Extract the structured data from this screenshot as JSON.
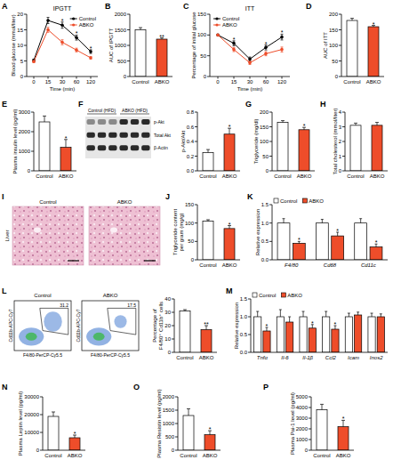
{
  "chart_data": [
    {
      "panel": "A",
      "type": "line",
      "title": "IPGTT",
      "categories": [
        "0",
        "15",
        "30",
        "60",
        "120"
      ],
      "series": [
        {
          "name": "Control",
          "color": "#000000",
          "values": [
            5.2,
            18,
            16.5,
            12.5,
            8
          ],
          "errors": [
            0.4,
            1,
            1,
            0.8,
            0.6
          ]
        },
        {
          "name": "ABKO",
          "color": "#ee4d2a",
          "values": [
            4.8,
            15,
            11,
            8.5,
            6
          ],
          "errors": [
            0.3,
            0.8,
            0.8,
            0.6,
            0.4
          ]
        }
      ],
      "ylim": [
        0,
        20
      ],
      "yticks": [
        0,
        5,
        10,
        15,
        20
      ],
      "x_label": "Time (min)",
      "y_label": "Blood glucose (mmol/liter)",
      "legend": "upper right",
      "annotations": [
        {
          "category": "30",
          "text": "*"
        },
        {
          "category": "60",
          "text": "*"
        },
        {
          "category": "120",
          "text": "*"
        }
      ]
    },
    {
      "panel": "B",
      "type": "bar",
      "categories": [
        "Control",
        "ABKO"
      ],
      "values": [
        1500,
        1200
      ],
      "errors": [
        70,
        40
      ],
      "colors": [
        "#ffffff",
        "#ee4d2a"
      ],
      "ylim": [
        0,
        2000
      ],
      "yticks": [
        0,
        500,
        1000,
        1500,
        2000
      ],
      "y_label": "AUC of IPGTT",
      "annotations": [
        {
          "category": "ABKO",
          "text": "**"
        }
      ]
    },
    {
      "panel": "C",
      "type": "line",
      "title": "ITT",
      "categories": [
        "0",
        "15",
        "30",
        "60",
        "120"
      ],
      "series": [
        {
          "name": "Control",
          "color": "#000000",
          "values": [
            100,
            80,
            42,
            70,
            95
          ],
          "errors": [
            0,
            6,
            5,
            6,
            7
          ]
        },
        {
          "name": "ABKO",
          "color": "#ee4d2a",
          "values": [
            100,
            65,
            33,
            55,
            65
          ],
          "errors": [
            0,
            5,
            4,
            5,
            6
          ]
        }
      ],
      "ylim": [
        0,
        150
      ],
      "yticks": [
        0,
        50,
        100,
        150
      ],
      "x_label": "Time (min)",
      "y_label": "Percentage of initial glucose",
      "legend": "upper left",
      "annotations": [
        {
          "category": "15",
          "text": "*"
        },
        {
          "category": "60",
          "text": "*"
        },
        {
          "category": "120",
          "text": "*"
        }
      ]
    },
    {
      "panel": "D",
      "type": "bar",
      "categories": [
        "Control",
        "ABKO"
      ],
      "values": [
        180,
        160
      ],
      "errors": [
        7,
        4
      ],
      "colors": [
        "#ffffff",
        "#ee4d2a"
      ],
      "ylim": [
        0,
        200
      ],
      "yticks": [
        0,
        50,
        100,
        150,
        200
      ],
      "y_label": "AUC of ITT",
      "annotations": [
        {
          "category": "ABKO",
          "text": "*"
        }
      ]
    },
    {
      "panel": "E",
      "type": "bar",
      "categories": [
        "Control",
        "ABKO"
      ],
      "values": [
        2500,
        1200
      ],
      "errors": [
        300,
        400
      ],
      "colors": [
        "#ffffff",
        "#ee4d2a"
      ],
      "ylim": [
        0,
        3000
      ],
      "yticks": [
        0,
        1000,
        2000,
        3000
      ],
      "y_label": "Plasma insulin level (pg/ml)",
      "annotations": [
        {
          "category": "ABKO",
          "text": "*"
        }
      ]
    },
    {
      "panel": "F",
      "type": "blot",
      "groups": [
        "Control (HFD)",
        "ABKO (HFD)"
      ],
      "rows": [
        "p-Akt",
        "Total Akt",
        "β-Actin"
      ]
    },
    {
      "type": "bar",
      "categories": [
        "Control",
        "ABKO"
      ],
      "values": [
        0.25,
        0.5
      ],
      "errors": [
        0.04,
        0.08
      ],
      "colors": [
        "#ffffff",
        "#ee4d2a"
      ],
      "ylim": [
        0,
        0.8
      ],
      "yticks": [
        {
          "value": 0,
          "label": "0.0"
        },
        0.2,
        0.4,
        0.6,
        0.8
      ],
      "y_label": "p-Akt/Akt",
      "annotations": [
        {
          "category": "ABKO",
          "text": "*"
        }
      ]
    },
    {
      "panel": "G",
      "type": "bar",
      "categories": [
        "Control",
        "ABKO"
      ],
      "values": [
        165,
        140
      ],
      "errors": [
        6,
        8
      ],
      "colors": [
        "#ffffff",
        "#ee4d2a"
      ],
      "ylim": [
        0,
        200
      ],
      "yticks": [
        0,
        50,
        100,
        150,
        200
      ],
      "y_label": "Triglyceride (mg/dl)",
      "annotations": [
        {
          "category": "ABKO",
          "text": "*"
        }
      ]
    },
    {
      "panel": "H",
      "type": "bar",
      "categories": [
        "Control",
        "ABKO"
      ],
      "values": [
        3.1,
        3.1
      ],
      "errors": [
        0.15,
        0.2
      ],
      "colors": [
        "#ffffff",
        "#ee4d2a"
      ],
      "ylim": [
        0,
        4
      ],
      "yticks": [
        0,
        1,
        2,
        3,
        4
      ],
      "y_label": "Total cholesterol (mmol/liter)"
    },
    {
      "panel": "I",
      "type": "micrograph",
      "tissue": "Liver",
      "images": [
        "Control",
        "ABKO"
      ]
    },
    {
      "panel": "J",
      "type": "bar",
      "categories": [
        "Control",
        "ABKO"
      ],
      "values": [
        105,
        85
      ],
      "errors": [
        4,
        8
      ],
      "colors": [
        "#ffffff",
        "#ee4d2a"
      ],
      "ylim": [
        0,
        150
      ],
      "yticks": [
        0,
        50,
        100,
        150
      ],
      "y_label": "Triglyceride content per gram (mg/g)",
      "annotations": [
        {
          "category": "ABKO",
          "text": "*"
        }
      ]
    },
    {
      "panel": "K",
      "type": "bar",
      "categories": [
        "F4/80",
        "Cd68",
        "Cd11c"
      ],
      "series": [
        {
          "name": "Control",
          "color": "#ffffff",
          "values": [
            1,
            1,
            1
          ],
          "errors": [
            0.12,
            0.1,
            0.12
          ]
        },
        {
          "name": "ABKO",
          "color": "#ee4d2a",
          "values": [
            0.45,
            0.65,
            0.35
          ],
          "errors": [
            0.05,
            0.1,
            0.08
          ]
        }
      ],
      "ylim": [
        0,
        1.5
      ],
      "yticks": [
        {
          "value": 0,
          "label": "0.0"
        },
        0.5,
        {
          "value": 1,
          "label": "1.0"
        },
        1.5
      ],
      "y_label": "Relative expression",
      "legend": "top",
      "annotations": [
        {
          "category": "F4/80",
          "text": "*"
        },
        {
          "category": "Cd68",
          "text": "*"
        },
        {
          "category": "Cd11c",
          "text": "*"
        }
      ]
    },
    {
      "panel": "L",
      "type": "flow",
      "samples": [
        "Control",
        "ABKO"
      ],
      "gate_values": [
        31.2,
        17.5
      ],
      "x_label": "F4/80-PerCP-Cy5.5",
      "y_label": "Cd11b-APC-Cy7"
    },
    {
      "type": "bar",
      "categories": [
        "Control",
        "ABKO"
      ],
      "values": [
        31,
        17
      ],
      "errors": [
        1,
        3
      ],
      "colors": [
        "#ffffff",
        "#ee4d2a"
      ],
      "ylim": [
        0,
        40
      ],
      "yticks": [
        0,
        10,
        20,
        30,
        40
      ],
      "y_label": "Percentage of F4/80⁺ Cd11b⁺ cells",
      "annotations": [
        {
          "category": "ABKO",
          "text": "**"
        }
      ]
    },
    {
      "panel": "M",
      "type": "bar",
      "categories": [
        "Tnfα",
        "Il-6",
        "Il-1β",
        "Ccl2",
        "Icam",
        "Inos2"
      ],
      "series": [
        {
          "name": "Control",
          "color": "#ffffff",
          "values": [
            1,
            1,
            1,
            1,
            1,
            1
          ],
          "errors": [
            0.15,
            0.2,
            0.15,
            0.15,
            0.1,
            0.1
          ]
        },
        {
          "name": "ABKO",
          "color": "#ee4d2a",
          "values": [
            0.6,
            0.85,
            0.68,
            0.65,
            1.05,
            1.0
          ],
          "errors": [
            0.1,
            0.15,
            0.1,
            0.1,
            0.08,
            0.08
          ]
        }
      ],
      "ylim": [
        0,
        1.5
      ],
      "yticks": [
        {
          "value": 0,
          "label": "0.0"
        },
        0.5,
        {
          "value": 1,
          "label": "1.0"
        },
        1.5
      ],
      "y_label": "Relative expression",
      "legend": "top",
      "annotations": [
        {
          "category": "Tnfα",
          "text": "*"
        },
        {
          "category": "Il-1β",
          "text": "*"
        },
        {
          "category": "Ccl2",
          "text": "*"
        }
      ]
    },
    {
      "panel": "N",
      "type": "bar",
      "categories": [
        "Control",
        "ABKO"
      ],
      "values": [
        19000,
        7000
      ],
      "errors": [
        2500,
        1500
      ],
      "colors": [
        "#ffffff",
        "#ee4d2a"
      ],
      "ylim": [
        0,
        30000
      ],
      "yticks": [
        0,
        10000,
        20000,
        30000
      ],
      "y_label": "Plasma Leptin level (pg/ml)",
      "annotations": [
        {
          "category": "ABKO",
          "text": "*"
        }
      ]
    },
    {
      "panel": "O",
      "type": "bar",
      "categories": [
        "Control",
        "ABKO"
      ],
      "values": [
        1300,
        580
      ],
      "errors": [
        250,
        150
      ],
      "colors": [
        "#ffffff",
        "#ee4d2a"
      ],
      "ylim": [
        0,
        2000
      ],
      "yticks": [
        0,
        500,
        1000,
        1500,
        2000
      ],
      "y_label": "Plasma Resistin level (pg/ml)",
      "annotations": [
        {
          "category": "ABKO",
          "text": "*"
        }
      ]
    },
    {
      "panel": "P",
      "type": "bar",
      "categories": [
        "Control",
        "ABKO"
      ],
      "values": [
        3800,
        2200
      ],
      "errors": [
        500,
        600
      ],
      "colors": [
        "#ffffff",
        "#ee4d2a"
      ],
      "ylim": [
        0,
        5000
      ],
      "yticks": [
        0,
        1000,
        2000,
        3000,
        4000,
        5000
      ],
      "y_label": "Plasma Pai-1 level (pg/ml)",
      "annotations": [
        {
          "category": "ABKO",
          "text": "*"
        }
      ]
    }
  ]
}
